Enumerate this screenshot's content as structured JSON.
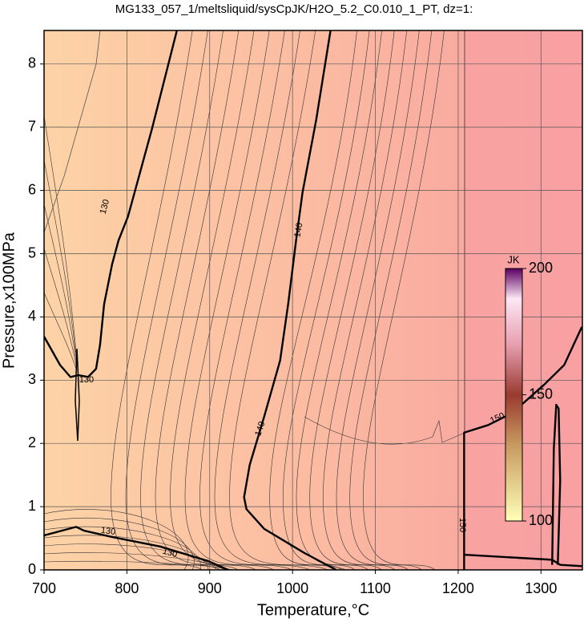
{
  "chart_data": {
    "type": "contour",
    "title": "MG133_057_1/meltsliquid/sysCpJK/H2O_5.2_C0.010_1_PT, dz=1:",
    "x_label": "Temperature,°C",
    "y_label": "Pressure,x100MPa",
    "xlim": [
      700,
      1350
    ],
    "ylim": [
      0,
      8.53
    ],
    "xticks": [
      700,
      800,
      900,
      1000,
      1100,
      1200,
      1300
    ],
    "yticks": [
      0,
      1,
      2,
      3,
      4,
      5,
      6,
      7,
      8
    ],
    "grid": true,
    "contours": [
      {
        "level": 130,
        "x": [
          860.4,
          830.4,
          801.4,
          789.9,
          782.1,
          772.5,
          767.6,
          762.8,
          753.1,
          741.5,
          731.9,
          719.3,
          700
        ],
        "y": [
          8.53,
          6.98,
          5.59,
          5.21,
          4.83,
          4.2,
          3.56,
          3.18,
          3.05,
          3.08,
          3.05,
          3.24,
          3.69
        ]
      },
      {
        "level": 130,
        "x": [
          700,
          738.6,
          748.3,
          782.1,
          840.1,
          898.1,
          922.2
        ],
        "y": [
          0.545,
          0.68,
          0.62,
          0.52,
          0.37,
          0.14,
          0
        ]
      },
      {
        "level": 140,
        "x": [
          1045.9,
          1028.5,
          1012.1,
          1004.3,
          994.7,
          985.0,
          965.7,
          948.3,
          941.5,
          944.4,
          965.7,
          1014.0,
          1052.7
        ],
        "y": [
          8.53,
          7.11,
          5.97,
          5.21,
          4.2,
          3.31,
          2.42,
          1.66,
          1.15,
          0.96,
          0.65,
          0.27,
          0
        ]
      },
      {
        "level": 150,
        "x": [
          1207.2,
          1207.2,
          1236.2,
          1265.2,
          1303.9,
          1328.0,
          1349.3,
          null,
          1207.2,
          1313.5,
          1323.2,
          1349.3,
          null,
          1313.5,
          1315.5,
          1318.4,
          1321.3,
          1323.2,
          1320.3
        ],
        "y": [
          0,
          2.17,
          2.29,
          2.48,
          2.93,
          3.24,
          3.84,
          null,
          0.24,
          0.16,
          0.08,
          0.06,
          null,
          0.08,
          1.91,
          2.61,
          2.55,
          1.41,
          0.08
        ]
      }
    ],
    "colorbar": {
      "label": "JK",
      "lim": [
        100,
        200
      ],
      "ticks": [
        100,
        150,
        200
      ]
    }
  }
}
